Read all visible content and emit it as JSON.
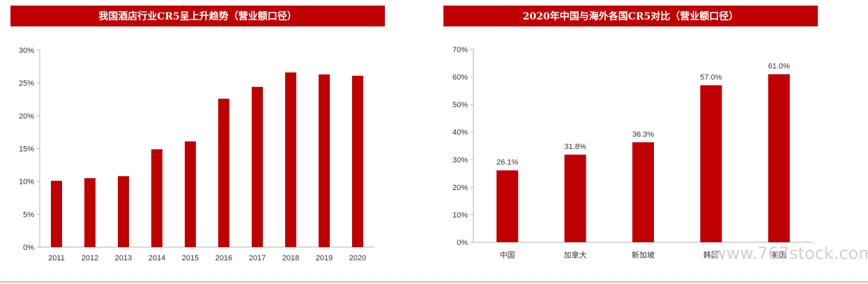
{
  "chart_data": [
    {
      "type": "bar",
      "title": "我国酒店行业CR5呈上升趋势（营业额口径）",
      "categories": [
        "2011",
        "2012",
        "2013",
        "2014",
        "2015",
        "2016",
        "2017",
        "2018",
        "2019",
        "2020"
      ],
      "values": [
        10.1,
        10.5,
        10.8,
        14.9,
        16.1,
        22.6,
        24.4,
        26.6,
        26.3,
        26.1
      ],
      "ylim": [
        0,
        30
      ],
      "yticks": [
        "0%",
        "5%",
        "10%",
        "15%",
        "20%",
        "25%",
        "30%"
      ],
      "grid": false,
      "color": "#c00000"
    },
    {
      "type": "bar",
      "title": "2020年中国与海外各国CR5对比（营业额口径）",
      "categories": [
        "中国",
        "加拿大",
        "新加坡",
        "韩国",
        "美国"
      ],
      "values": [
        26.1,
        31.8,
        36.3,
        57.0,
        61.0
      ],
      "data_labels": [
        "26.1%",
        "31.8%",
        "36.3%",
        "57.0%",
        "61.0%"
      ],
      "ylim": [
        0,
        70
      ],
      "yticks": [
        "0%",
        "10%",
        "20%",
        "30%",
        "40%",
        "50%",
        "60%",
        "70%"
      ],
      "grid": false,
      "color": "#c00000"
    }
  ],
  "watermark": "www.767stock.com"
}
